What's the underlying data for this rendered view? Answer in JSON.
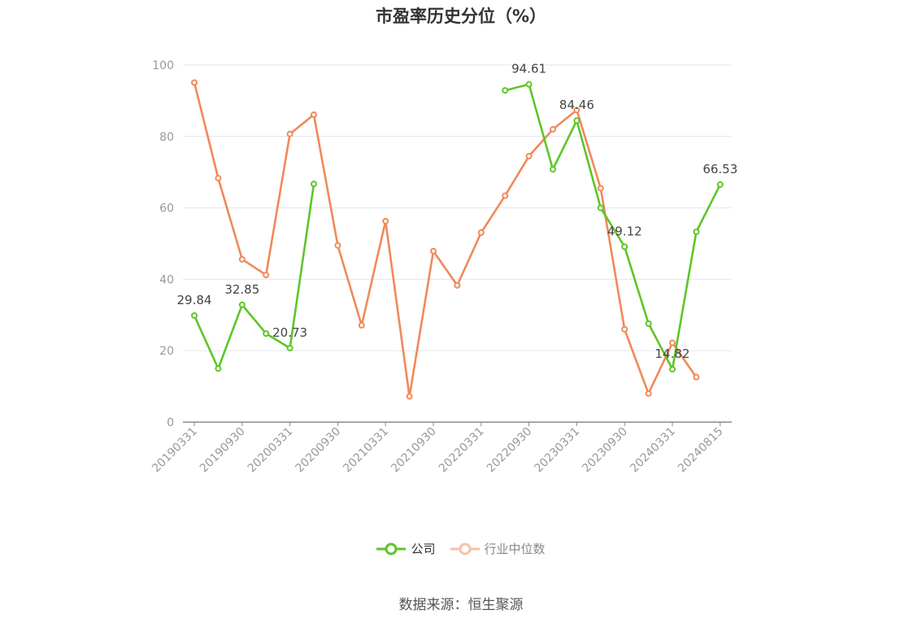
{
  "chart_data": {
    "type": "line",
    "title": "市盈率历史分位（%）",
    "source": "数据来源：恒生聚源",
    "ylim": [
      0,
      100
    ],
    "yticks": [
      0,
      20,
      40,
      60,
      80,
      100
    ],
    "grid": true,
    "legend_position": "bottom",
    "x": [
      "20190331",
      "20190630",
      "20190930",
      "20191231",
      "20200331",
      "20200630",
      "20200930",
      "20201231",
      "20210331",
      "20210630",
      "20210930",
      "20211231",
      "20220331",
      "20220630",
      "20220930",
      "20221231",
      "20230331",
      "20230630",
      "20230930",
      "20231231",
      "20240331",
      "20240630",
      "20240815"
    ],
    "xtick_labels": [
      "20190331",
      "20190930",
      "20200331",
      "20200930",
      "20210331",
      "20210930",
      "20220331",
      "20220930",
      "20230331",
      "20230930",
      "20240331",
      "20240815"
    ],
    "series": [
      {
        "name": "公司",
        "color": "#5cc628",
        "values": [
          29.84,
          15.0,
          32.85,
          24.8,
          20.73,
          66.7,
          null,
          null,
          null,
          null,
          null,
          null,
          null,
          92.9,
          94.61,
          70.8,
          84.46,
          60.0,
          49.12,
          27.6,
          14.82,
          53.3,
          66.53
        ],
        "labels": [
          "29.84",
          null,
          "32.85",
          null,
          "20.73",
          null,
          null,
          null,
          null,
          null,
          null,
          null,
          null,
          null,
          "94.61",
          null,
          "84.46",
          null,
          "49.12",
          null,
          "14.82",
          null,
          "66.53"
        ]
      },
      {
        "name": "行业中位数",
        "color": "#f0895a",
        "values": [
          95.1,
          68.3,
          45.6,
          41.2,
          80.7,
          86.1,
          49.5,
          27.1,
          56.3,
          7.2,
          47.9,
          38.3,
          53.1,
          63.4,
          74.5,
          82.0,
          87.4,
          65.5,
          26.0,
          8.0,
          22.2,
          12.6,
          null
        ]
      }
    ]
  }
}
